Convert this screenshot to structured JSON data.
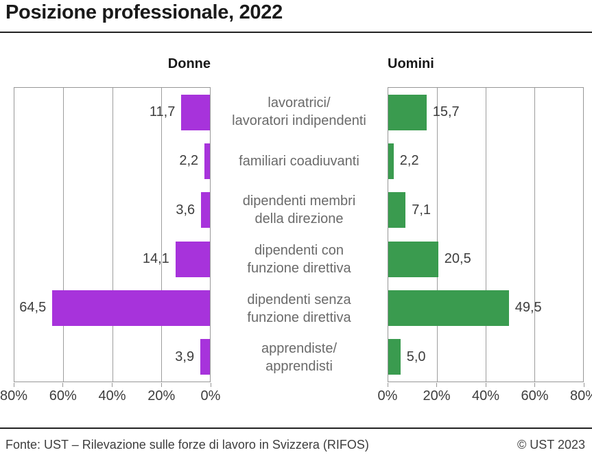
{
  "header": {
    "title": "Posizione professionale, 2022"
  },
  "footer": {
    "source": "Fonte: UST – Rilevazione sulle forze di lavoro in Svizzera (RIFOS)",
    "copyright": "© UST 2023"
  },
  "chart_data": {
    "type": "bar",
    "orientation": "horizontal",
    "layout": "diverging-pyramid",
    "title": "Posizione professionale, 2022",
    "categories": [
      [
        "lavoratrici/",
        "lavoratori indipendenti"
      ],
      [
        "familiari coadiuvanti"
      ],
      [
        "dipendenti membri",
        "della direzione"
      ],
      [
        "dipendenti con",
        "funzione direttiva"
      ],
      [
        "dipendenti senza",
        "funzione direttiva"
      ],
      [
        "apprendiste/",
        "apprendisti"
      ]
    ],
    "xlim": [
      0,
      80
    ],
    "grid": true,
    "grid_interval_pct": 20,
    "series": [
      {
        "name": "Donne",
        "color": "#A733DB",
        "direction": "right-to-left",
        "values": [
          11.7,
          2.2,
          3.6,
          14.1,
          64.5,
          3.9
        ],
        "value_labels": [
          "11,7",
          "2,2",
          "3,6",
          "14,1",
          "64,5",
          "3,9"
        ],
        "axis_ticks": [
          "80%",
          "60%",
          "40%",
          "20%",
          "0%"
        ]
      },
      {
        "name": "Uomini",
        "color": "#3A9B4F",
        "direction": "left-to-right",
        "values": [
          15.7,
          2.2,
          7.1,
          20.5,
          49.5,
          5.0
        ],
        "value_labels": [
          "15,7",
          "2,2",
          "7,1",
          "20,5",
          "49,5",
          "5,0"
        ],
        "axis_ticks": [
          "0%",
          "20%",
          "40%",
          "60%",
          "80%"
        ]
      }
    ]
  }
}
